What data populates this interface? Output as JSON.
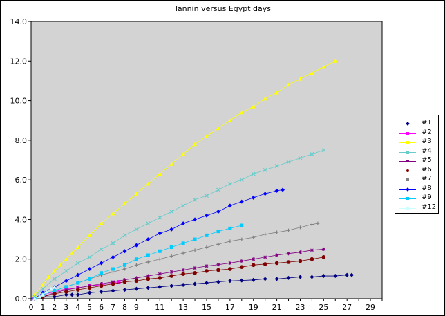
{
  "chart_data": {
    "type": "line",
    "title": "Tannin versus Egypt days",
    "xlabel": "",
    "ylabel": "",
    "xlim": [
      0,
      30
    ],
    "ylim": [
      0,
      14
    ],
    "x_ticks": [
      0,
      1,
      2,
      3,
      4,
      5,
      6,
      7,
      8,
      9,
      11,
      13,
      15,
      17,
      19,
      21,
      23,
      25,
      27,
      29
    ],
    "y_ticks": [
      "0.0",
      "2.0",
      "4.0",
      "6.0",
      "8.0",
      "10.0",
      "12.0",
      "14.0"
    ],
    "grid": false,
    "legend_position": "right",
    "background": "#d3d3d3",
    "series": [
      {
        "name": "#1",
        "color": "#000080",
        "marker": "diamond",
        "x": [
          0.3,
          1.0,
          2.0,
          3.0,
          3.5,
          4.0,
          5.0,
          6.0,
          7.0,
          8.0,
          9.0,
          10.0,
          11.0,
          12.0,
          13.0,
          14.0,
          15.0,
          16.0,
          17.0,
          18.0,
          19.0,
          20.0,
          21.0,
          22.0,
          23.0,
          24.0,
          25.0,
          26.0,
          27.0,
          27.4
        ],
        "y": [
          0.0,
          0.1,
          0.1,
          0.2,
          0.2,
          0.2,
          0.3,
          0.35,
          0.4,
          0.45,
          0.5,
          0.55,
          0.6,
          0.65,
          0.7,
          0.75,
          0.8,
          0.85,
          0.9,
          0.92,
          0.95,
          1.0,
          1.0,
          1.05,
          1.1,
          1.1,
          1.15,
          1.15,
          1.2,
          1.2
        ]
      },
      {
        "name": "#2",
        "color": "#ff00ff",
        "marker": "square",
        "x": [
          0.2,
          1.0,
          2.0,
          3.0,
          4.0,
          5.0,
          6.0,
          7.0,
          7.5
        ],
        "y": [
          0.0,
          0.2,
          0.35,
          0.5,
          0.55,
          0.65,
          0.7,
          0.8,
          0.85
        ]
      },
      {
        "name": "#3",
        "color": "#ffff00",
        "marker": "triangle",
        "x": [
          0.3,
          1.0,
          1.5,
          2.0,
          2.5,
          3.0,
          3.5,
          4.0,
          5.0,
          6.0,
          7.0,
          8.0,
          9.0,
          10.0,
          11.0,
          12.0,
          13.0,
          14.0,
          15.0,
          16.0,
          17.0,
          18.0,
          19.0,
          20.0,
          21.0,
          22.0,
          23.0,
          24.0,
          25.0,
          26.0
        ],
        "y": [
          0.2,
          0.7,
          1.1,
          1.4,
          1.7,
          2.0,
          2.3,
          2.6,
          3.2,
          3.8,
          4.3,
          4.8,
          5.3,
          5.8,
          6.3,
          6.8,
          7.3,
          7.8,
          8.2,
          8.6,
          9.0,
          9.4,
          9.7,
          10.1,
          10.4,
          10.8,
          11.1,
          11.4,
          11.7,
          12.0
        ]
      },
      {
        "name": "#4",
        "color": "#66cccc",
        "marker": "x",
        "x": [
          0.3,
          1.0,
          2.0,
          3.0,
          4.0,
          5.0,
          6.0,
          7.0,
          8.0,
          9.0,
          10.0,
          11.0,
          12.0,
          13.0,
          14.0,
          15.0,
          16.0,
          17.0,
          18.0,
          19.0,
          20.0,
          21.0,
          22.0,
          23.0,
          24.0,
          25.0
        ],
        "y": [
          0.1,
          0.5,
          1.0,
          1.4,
          1.8,
          2.1,
          2.5,
          2.8,
          3.2,
          3.5,
          3.8,
          4.1,
          4.4,
          4.7,
          5.0,
          5.2,
          5.5,
          5.8,
          6.0,
          6.3,
          6.5,
          6.7,
          6.9,
          7.1,
          7.3,
          7.5
        ]
      },
      {
        "name": "#5",
        "color": "#800080",
        "marker": "star",
        "x": [
          0.3,
          1.0,
          2.0,
          3.0,
          4.0,
          5.0,
          6.0,
          7.0,
          8.0,
          9.0,
          10.0,
          11.0,
          12.0,
          13.0,
          14.0,
          15.0,
          16.0,
          17.0,
          18.0,
          19.0,
          20.0,
          21.0,
          22.0,
          23.0,
          24.0,
          25.0
        ],
        "y": [
          0.0,
          0.1,
          0.3,
          0.45,
          0.55,
          0.65,
          0.75,
          0.85,
          0.95,
          1.05,
          1.15,
          1.25,
          1.35,
          1.45,
          1.55,
          1.65,
          1.72,
          1.8,
          1.9,
          2.0,
          2.1,
          2.2,
          2.28,
          2.35,
          2.45,
          2.5
        ]
      },
      {
        "name": "#6",
        "color": "#800000",
        "marker": "circle",
        "x": [
          0.3,
          1.0,
          2.0,
          3.0,
          4.0,
          5.0,
          6.0,
          7.0,
          8.0,
          9.0,
          10.0,
          11.0,
          12.0,
          13.0,
          14.0,
          15.0,
          16.0,
          17.0,
          18.0,
          19.0,
          20.0,
          21.0,
          22.0,
          23.0,
          24.0,
          25.0
        ],
        "y": [
          0.0,
          0.1,
          0.25,
          0.35,
          0.45,
          0.55,
          0.65,
          0.75,
          0.85,
          0.9,
          1.0,
          1.05,
          1.15,
          1.25,
          1.3,
          1.4,
          1.45,
          1.5,
          1.6,
          1.7,
          1.75,
          1.8,
          1.85,
          1.9,
          2.0,
          2.1
        ]
      },
      {
        "name": "#7",
        "color": "#808080",
        "marker": "plus",
        "x": [
          0.3,
          1.0,
          2.0,
          3.0,
          4.0,
          5.0,
          6.0,
          7.0,
          8.0,
          9.0,
          10.0,
          11.0,
          12.0,
          13.0,
          14.0,
          15.0,
          16.0,
          17.0,
          18.0,
          19.0,
          20.0,
          21.0,
          22.0,
          23.0,
          24.0,
          24.5
        ],
        "y": [
          0.0,
          0.2,
          0.4,
          0.6,
          0.8,
          1.0,
          1.2,
          1.35,
          1.5,
          1.7,
          1.85,
          2.0,
          2.15,
          2.3,
          2.45,
          2.6,
          2.75,
          2.9,
          3.0,
          3.1,
          3.25,
          3.35,
          3.45,
          3.6,
          3.75,
          3.8
        ]
      },
      {
        "name": "#8",
        "color": "#0000ff",
        "marker": "diamond",
        "x": [
          0.3,
          1.0,
          2.0,
          3.0,
          4.0,
          5.0,
          6.0,
          7.0,
          8.0,
          9.0,
          10.0,
          11.0,
          12.0,
          13.0,
          14.0,
          15.0,
          16.0,
          17.0,
          18.0,
          19.0,
          20.0,
          21.0,
          21.5
        ],
        "y": [
          0.0,
          0.3,
          0.6,
          0.9,
          1.2,
          1.5,
          1.8,
          2.1,
          2.4,
          2.7,
          3.0,
          3.3,
          3.5,
          3.8,
          4.0,
          4.2,
          4.4,
          4.7,
          4.9,
          5.1,
          5.3,
          5.45,
          5.5
        ]
      },
      {
        "name": "#9",
        "color": "#00ccff",
        "marker": "square",
        "x": [
          0.3,
          1.0,
          2.0,
          3.0,
          4.0,
          5.0,
          6.0,
          7.0,
          8.0,
          9.0,
          10.0,
          11.0,
          12.0,
          13.0,
          14.0,
          15.0,
          16.0,
          17.0,
          18.0
        ],
        "y": [
          0.0,
          0.2,
          0.4,
          0.6,
          0.8,
          1.0,
          1.3,
          1.5,
          1.7,
          2.0,
          2.2,
          2.4,
          2.6,
          2.8,
          3.0,
          3.2,
          3.4,
          3.55,
          3.7
        ]
      },
      {
        "name": "#12",
        "color": "#ccffff",
        "marker": "triangle",
        "x": [
          0.3,
          0.7,
          1.0,
          1.3,
          1.7,
          2.0
        ],
        "y": [
          0.0,
          0.1,
          0.2,
          0.35,
          0.5,
          0.6
        ]
      }
    ]
  }
}
